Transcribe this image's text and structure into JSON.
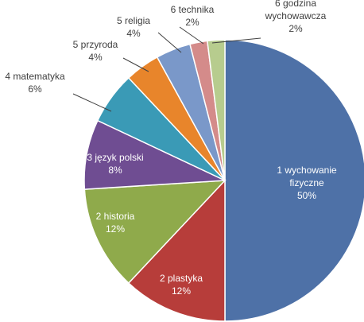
{
  "chart_data": {
    "type": "pie",
    "title": "",
    "start_angle_deg": 0,
    "direction": "clockwise",
    "slices": [
      {
        "label": [
          "1 wychowanie",
          "fizyczne"
        ],
        "value_text": "50%",
        "value": 50,
        "color": "#4e71a7"
      },
      {
        "label": [
          "2 plastyka"
        ],
        "value_text": "12%",
        "value": 12,
        "color": "#b73d3a"
      },
      {
        "label": [
          "2 historia"
        ],
        "value_text": "12%",
        "value": 12,
        "color": "#8faa4b"
      },
      {
        "label": [
          "3 język polski"
        ],
        "value_text": "8%",
        "value": 8,
        "color": "#6f4d92"
      },
      {
        "label": [
          "4 matematyka"
        ],
        "value_text": "6%",
        "value": 6,
        "color": "#3a9ab6"
      },
      {
        "label": [
          "5 przyroda"
        ],
        "value_text": "4%",
        "value": 4,
        "color": "#e8852b"
      },
      {
        "label": [
          "5 religia"
        ],
        "value_text": "4%",
        "value": 4,
        "color": "#7a98c9"
      },
      {
        "label": [
          "6 technika"
        ],
        "value_text": "2%",
        "value": 2,
        "color": "#d48b8a"
      },
      {
        "label": [
          "6 godzina",
          "wychowawcza"
        ],
        "value_text": "2%",
        "value": 2,
        "color": "#b7cc8e"
      }
    ]
  }
}
